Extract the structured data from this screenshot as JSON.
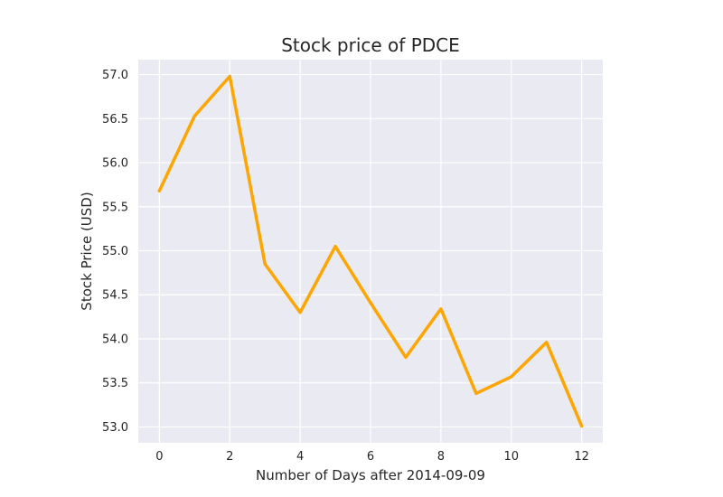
{
  "chart_data": {
    "type": "line",
    "title": "Stock price of PDCE",
    "xlabel": "Number of Days after 2014-09-09",
    "ylabel": "Stock Price (USD)",
    "x": [
      0,
      1,
      2,
      3,
      4,
      5,
      6,
      7,
      8,
      9,
      10,
      11,
      12
    ],
    "series": [
      {
        "name": "PDCE",
        "values": [
          55.68,
          56.53,
          56.98,
          54.85,
          54.3,
          55.05,
          54.41,
          53.79,
          54.34,
          53.38,
          53.57,
          53.96,
          53.01
        ]
      }
    ],
    "xticks": [
      0,
      2,
      4,
      6,
      8,
      10,
      12
    ],
    "yticks": [
      53.0,
      53.5,
      54.0,
      54.5,
      55.0,
      55.5,
      56.0,
      56.5,
      57.0
    ],
    "xlim": [
      -0.6,
      12.6
    ],
    "ylim": [
      52.82,
      57.17
    ],
    "grid": true,
    "colors": {
      "line": "#FFA500",
      "plot_background": "#EAEAF2",
      "grid": "#FFFFFF",
      "text": "#262626"
    }
  }
}
